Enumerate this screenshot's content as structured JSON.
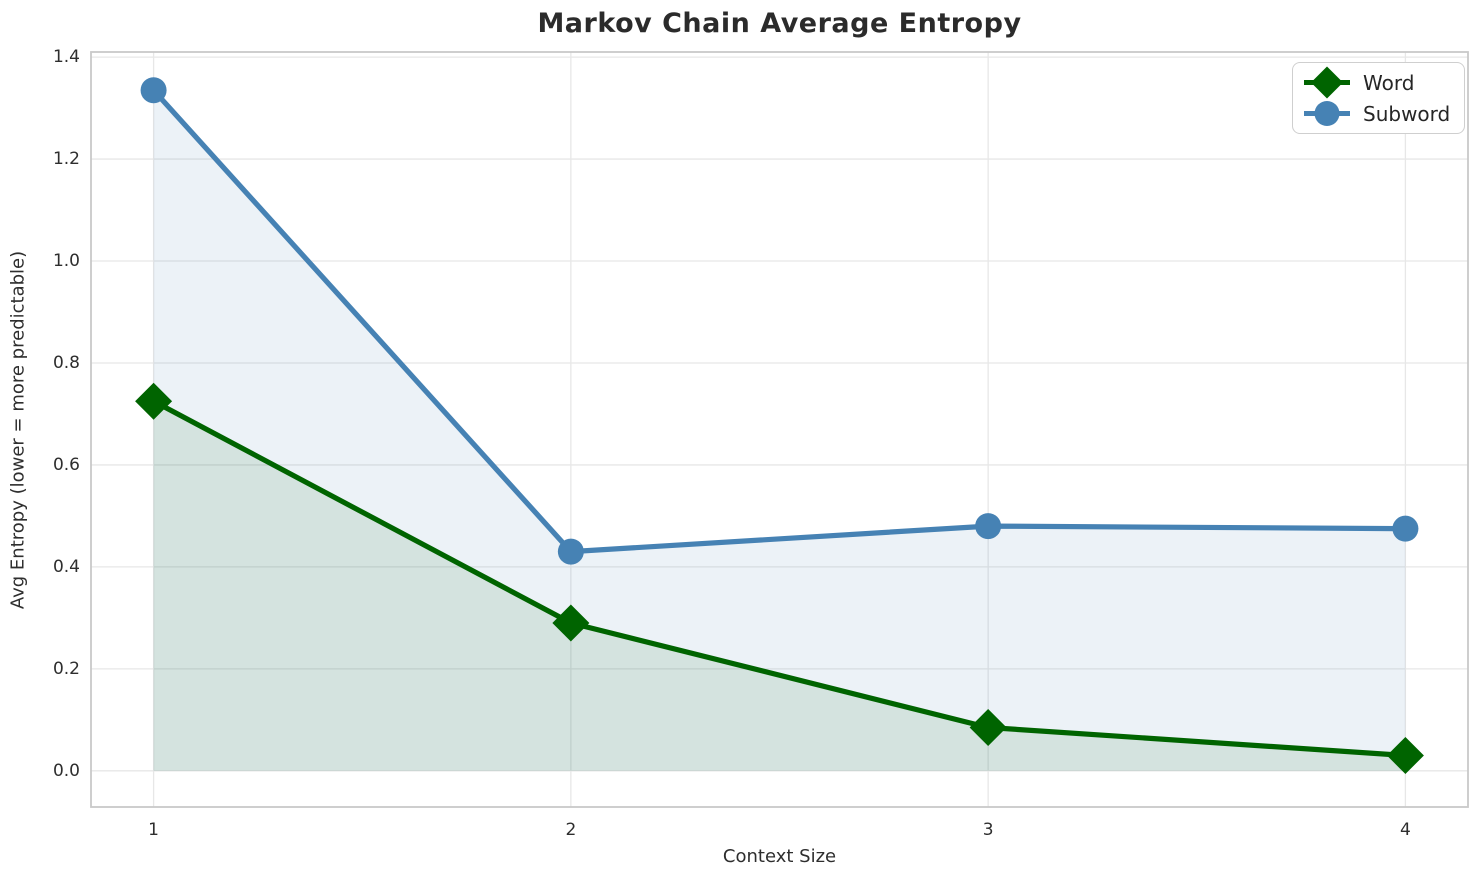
{
  "chart_data": {
    "type": "line",
    "title": "Markov Chain Average Entropy",
    "xlabel": "Context Size",
    "ylabel": "Avg Entropy (lower = more predictable)",
    "x": [
      1,
      2,
      3,
      4
    ],
    "series": [
      {
        "name": "Word",
        "color": "#006400",
        "marker": "diamond",
        "values": [
          0.725,
          0.29,
          0.085,
          0.03
        ]
      },
      {
        "name": "Subword",
        "color": "#4682B4",
        "marker": "circle",
        "values": [
          1.335,
          0.43,
          0.48,
          0.475
        ]
      }
    ],
    "fill_to_zero": true,
    "fill_opacity": 0.1,
    "xticks": [
      "1",
      "2",
      "3",
      "4"
    ],
    "yticks": [
      "0.0",
      "0.2",
      "0.4",
      "0.6",
      "0.8",
      "1.0",
      "1.2",
      "1.4"
    ],
    "xlim": [
      0.85,
      4.15
    ],
    "ylim": [
      -0.071,
      1.41
    ],
    "grid": true,
    "legend_position": "upper right",
    "colors": {
      "grid": "#e7e7e7",
      "spine": "#c9c9c9",
      "text": "#2e2e2e",
      "background": "#ffffff"
    }
  }
}
